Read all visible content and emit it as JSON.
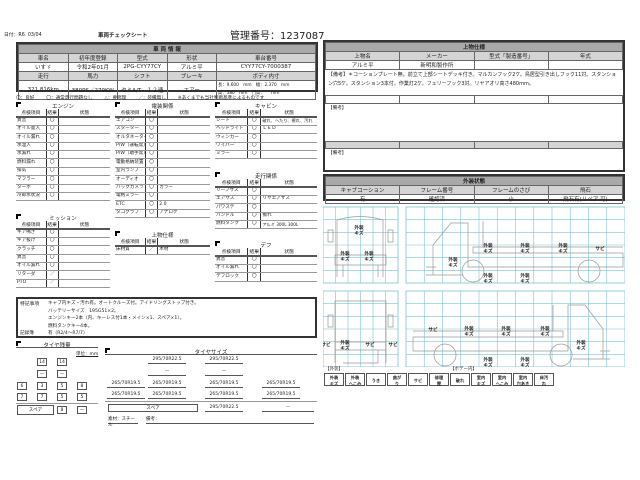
{
  "header": {
    "date": "日付：R6. 03/04",
    "title": "車両チェックシート",
    "management_no": "管理番号：1237087"
  },
  "vehicle": {
    "section": "車 両 情 報",
    "labels1": [
      "車名",
      "初年度登録",
      "型式",
      "形状",
      "車台番号"
    ],
    "values1": [
      "いすゞ",
      "令和2年01月",
      "2PG-CYY77CY",
      "アルミ平",
      "CYY77CY-7000387"
    ],
    "labels2": [
      "走行",
      "馬力",
      "シフト",
      "ブレーキ",
      "ボディ内寸"
    ],
    "values2": [
      "321,816km",
      "380PS／279KW",
      "セミA/T　１２速",
      "エアー"
    ],
    "body_dims": [
      "長：9,600　mm　幅：2,370　mm",
      "高：580　mm　門高：　　mm"
    ]
  },
  "legend_line": [
    "〇：良好",
    "〇：通常走行問題なし",
    "△：要修理",
    "／：装備無し",
    "※あくまでも当社判断基準によるものです"
  ],
  "col_headers": [
    "点検項目",
    "結果",
    "状態"
  ],
  "sections": {
    "engine": {
      "title": "エンジン",
      "rows": [
        [
          "異音",
          "〇",
          ""
        ],
        [
          "オイル量入",
          "〇",
          ""
        ],
        [
          "オイル漏れ",
          "〇",
          ""
        ],
        [
          "水温入",
          "〇",
          ""
        ],
        [
          "水漏れ",
          "〇",
          ""
        ],
        [
          "燃料漏れ",
          "〇",
          ""
        ],
        [
          "排気",
          "〇",
          ""
        ],
        [
          "マフラー",
          "〇",
          ""
        ],
        [
          "ターボ",
          "〇",
          ""
        ],
        [
          "冷却水状況",
          "〇",
          ""
        ]
      ]
    },
    "mission": {
      "title": "ミッション",
      "rows": [
        [
          "ギア鳴き",
          "〇",
          ""
        ],
        [
          "ギア抜け",
          "〇",
          ""
        ],
        [
          "クラッチ",
          "〇",
          ""
        ],
        [
          "異音",
          "〇",
          ""
        ],
        [
          "オイル漏れ",
          "〇",
          ""
        ],
        [
          "リターダ",
          "／",
          ""
        ],
        [
          "PTO",
          "／",
          ""
        ]
      ]
    },
    "electrical": {
      "title": "電装関係",
      "rows": [
        [
          "エアコン",
          "〇",
          ""
        ],
        [
          "スターター",
          "〇",
          ""
        ],
        [
          "オルタネーター",
          "〇",
          ""
        ],
        [
          "P/W（運転席）",
          "〇",
          ""
        ],
        [
          "P/W（助手席）",
          "〇",
          ""
        ],
        [
          "電動格納装置",
          "〇",
          ""
        ],
        [
          "室内ランプ",
          "〇",
          ""
        ],
        [
          "オーディオ",
          "〇",
          ""
        ],
        [
          "バックカメラ",
          "〇",
          "カラー"
        ],
        [
          "電格ミラー",
          "〇",
          ""
        ],
        [
          "ETC",
          "〇",
          "2.0"
        ],
        [
          "タコグラフ",
          "〇",
          "アナログ"
        ]
      ]
    },
    "upper": {
      "title": "上物仕様",
      "rows": [
        [
          "床材質",
          "／",
          "木材"
        ]
      ]
    },
    "cabin": {
      "title": "キャビン",
      "rows": [
        [
          "シート",
          "〇",
          "破れ、へたり、擦れ、汚れ"
        ],
        [
          "ヘッドライト",
          "〇",
          "ＬＥＤ"
        ],
        [
          "ウィンカー",
          "〇",
          ""
        ],
        [
          "ワイパー",
          "〇",
          ""
        ],
        [
          "ミラー",
          "〇",
          ""
        ]
      ]
    },
    "running": {
      "title": "走行関係",
      "rows": [
        [
          "リーフサス",
          "〇",
          ""
        ],
        [
          "エアサス",
          "〇",
          "リヤエアサス"
        ],
        [
          "パワステ",
          "〇",
          ""
        ],
        [
          "ハンドル",
          "〇",
          "擦れ"
        ],
        [
          "燃料タンク",
          "〇",
          "アルミ 300L 300L"
        ]
      ]
    },
    "diff": {
      "title": "デフ",
      "rows": [
        [
          "異音",
          "〇",
          ""
        ],
        [
          "オイル漏れ",
          "〇",
          ""
        ],
        [
          "デフロック",
          "〇",
          ""
        ]
      ]
    }
  },
  "special": {
    "label": "特記事項",
    "lines": [
      "キャブ内キズ・汚れ有。オートクルーズ付。アイドリングストップ付き。",
      "バッテリーサイズ　195G51×2。",
      "エンジンキー2本（内、キーレス付1本・メイン×1、スペア×1）。",
      "燃料タンクキー4本。"
    ],
    "record_label": "記録簿",
    "record_value": "有（R2/4〜R7/7）"
  },
  "tire_remain": {
    "title": "タイヤ残量",
    "unit": "単位：mm",
    "rows": [
      [
        "14",
        "14"
      ],
      [
        "—",
        "—"
      ],
      [
        "6",
        "3",
        "5",
        "8"
      ],
      [
        "7",
        "7",
        "5",
        "5"
      ]
    ],
    "spare_label": "スペア",
    "spare_values": [
      "8",
      "—"
    ]
  },
  "tire_size": {
    "title": "タイヤサイズ",
    "front": [
      "295/70R22.5",
      "295/70R22.5"
    ],
    "front2": [
      "—",
      "—"
    ],
    "rear1": [
      "265/70R19.5",
      "265/70R19.5",
      "265/70R19.5",
      "265/70R19.5"
    ],
    "rear2": [
      "265/70R19.5",
      "265/70R19.5",
      "265/70R19.5",
      "265/70R19.5"
    ],
    "spare_label": "スペア",
    "spare": [
      "295/70R22.5",
      "—"
    ],
    "material": "素材：スチール",
    "remarks_label": "備考："
  },
  "upper_spec": {
    "title": "上物仕様",
    "headers": [
      "上物名",
      "メーカー",
      "型式「製造番号」",
      "年式"
    ],
    "values": [
      "アルミ平",
      "新明和製作所",
      "",
      ""
    ],
    "remarks": "【備考】＊コーションプレート無。前立て上部シートデッキ付き。マルカンフック2ケ。鳥居型引き出しフック11対。スタンション穴5ケ。スタンション3本付。作業灯2ケ。フェリーフック3対。リヤアオリ高さ480mm。",
    "remarks2": "【備考】",
    "remarks3": "【備考】"
  },
  "exterior": {
    "title": "外装状態",
    "headers": [
      "キャブコーション",
      "フレーム番号",
      "フレームのさび",
      "飛石"
    ],
    "values": [
      "有",
      "確認済",
      "小",
      "飛石有(リペア 可)"
    ],
    "marks_front": [
      "外装キズ",
      "外装キズ",
      "外装キズ"
    ],
    "marks_side_left": [
      "外装キズ",
      "外装キズ",
      "外装キズ",
      "サビ",
      "外装キズ",
      "外装キズ",
      "外装キズ"
    ],
    "marks_rear": [
      "サビ",
      "外装キズ",
      "サビ",
      "サビ"
    ],
    "marks_side_right": [
      "サビ",
      "外装キズ",
      "外装キズ",
      "外装キズ",
      "外装キズ",
      "外装キズ",
      "外装キズ"
    ],
    "grid_color": "#7cc4d4",
    "legend_exterior_label": "【外装】",
    "legend_body_label": "【ボデー内】",
    "legend_exterior": [
      "外装キズ",
      "外装へこみ",
      "うき",
      "曲がり",
      "サビ",
      "修理歴"
    ],
    "legend_body": [
      "破れ",
      "室内キズ",
      "室内へこみ",
      "室内穴あき",
      "床汚れ"
    ]
  }
}
